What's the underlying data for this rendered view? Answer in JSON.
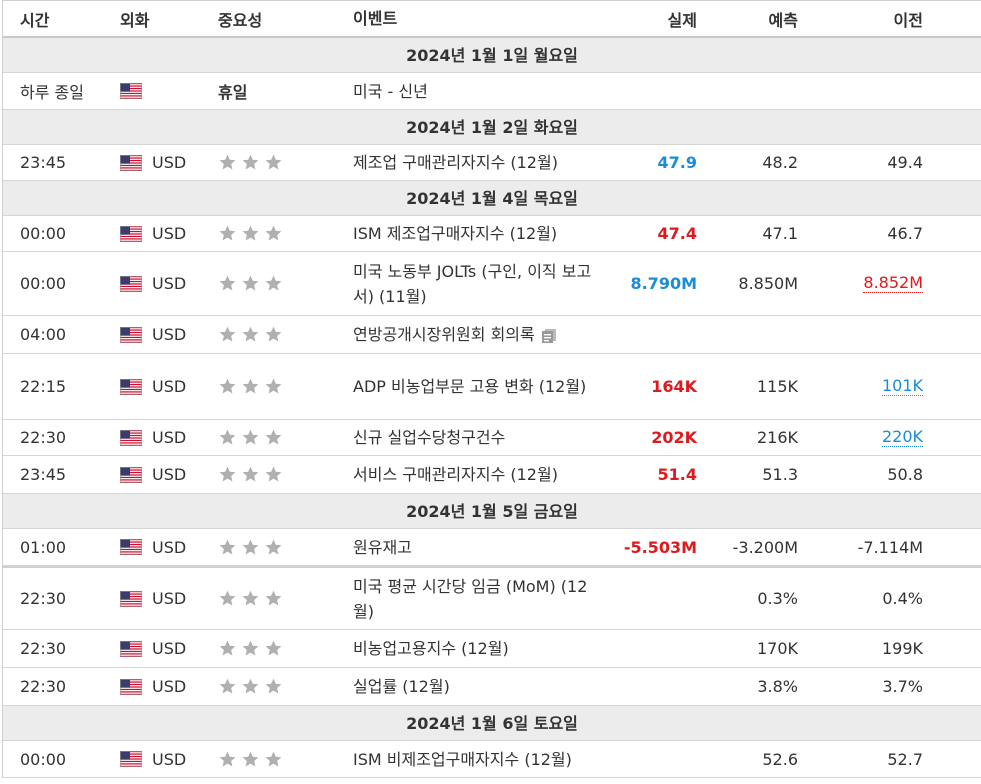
{
  "header": {
    "time": "시간",
    "currency": "외화",
    "importance": "중요성",
    "event": "이벤트",
    "actual": "실제",
    "forecast": "예측",
    "previous": "이전"
  },
  "colors": {
    "positive": "#1b8cd6",
    "negative": "#e0191d",
    "date_bg": "#ececec",
    "star": "#b0b0b0"
  },
  "days": [
    {
      "date": "2024년 1월 1일 월요일",
      "rows": [
        {
          "time": "하루 종일",
          "currency": "",
          "holiday": "휴일",
          "event": "미국 - 신년",
          "actual": "",
          "forecast": "",
          "previous": ""
        }
      ]
    },
    {
      "date": "2024년 1월 2일 화요일",
      "rows": [
        {
          "time": "23:45",
          "currency": "USD",
          "event": "제조업 구매관리자지수 (12월)",
          "actual": "47.9",
          "actual_state": "pos",
          "forecast": "48.2",
          "previous": "49.4"
        }
      ]
    },
    {
      "date": "2024년 1월 4일 목요일",
      "rows": [
        {
          "time": "00:00",
          "currency": "USD",
          "event": "ISM 제조업구매자지수 (12월)",
          "actual": "47.4",
          "actual_state": "neg",
          "forecast": "47.1",
          "previous": "46.7"
        },
        {
          "time": "00:00",
          "currency": "USD",
          "event": "미국 노동부 JOLTs (구인, 이직 보고서) (11월)",
          "actual": "8.790M",
          "actual_state": "pos",
          "forecast": "8.850M",
          "previous": "8.852M",
          "previous_state": "red-under"
        },
        {
          "time": "04:00",
          "currency": "USD",
          "event": "연방공개시장위원회 회의록",
          "doc_icon": true,
          "actual": "",
          "forecast": "",
          "previous": ""
        },
        {
          "time": "22:15",
          "currency": "USD",
          "event": "ADP 비농업부문 고용 변화 (12월)",
          "actual": "164K",
          "actual_state": "neg",
          "forecast": "115K",
          "previous": "101K",
          "previous_state": "blue-under"
        },
        {
          "time": "22:30",
          "currency": "USD",
          "event": "신규 실업수당청구건수",
          "actual": "202K",
          "actual_state": "neg",
          "forecast": "216K",
          "previous": "220K",
          "previous_state": "blue-under"
        },
        {
          "time": "23:45",
          "currency": "USD",
          "event": "서비스 구매관리자지수 (12월)",
          "actual": "51.4",
          "actual_state": "neg",
          "forecast": "51.3",
          "previous": "50.8"
        }
      ]
    },
    {
      "date": "2024년 1월 5일 금요일",
      "rows": [
        {
          "time": "01:00",
          "currency": "USD",
          "event": "원유재고",
          "actual": "-5.503M",
          "actual_state": "neg",
          "forecast": "-3.200M",
          "previous": "-7.114M"
        },
        {
          "time": "22:30",
          "currency": "USD",
          "event": "미국 평균 시간당 임금 (MoM) (12월)",
          "actual": "",
          "forecast": "0.3%",
          "previous": "0.4%"
        },
        {
          "time": "22:30",
          "currency": "USD",
          "event": "비농업고용지수 (12월)",
          "actual": "",
          "forecast": "170K",
          "previous": "199K"
        },
        {
          "time": "22:30",
          "currency": "USD",
          "event": "실업률 (12월)",
          "actual": "",
          "forecast": "3.8%",
          "previous": "3.7%"
        }
      ]
    },
    {
      "date": "2024년 1월 6일 토요일",
      "rows": [
        {
          "time": "00:00",
          "currency": "USD",
          "event": "ISM 비제조업구매자지수 (12월)",
          "actual": "",
          "forecast": "52.6",
          "previous": "52.7"
        }
      ]
    }
  ]
}
